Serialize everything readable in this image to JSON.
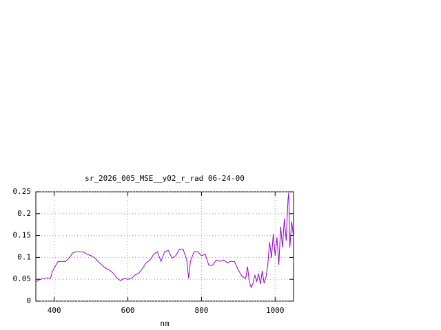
{
  "chart_data": {
    "type": "line",
    "title": "sr_2026_005_MSE__y02_r_rad 06-24-00",
    "x_label": "nm",
    "x": [
      350,
      360,
      370,
      380,
      390,
      395,
      405,
      410,
      420,
      430,
      440,
      450,
      460,
      470,
      480,
      490,
      500,
      510,
      520,
      530,
      540,
      550,
      560,
      570,
      580,
      590,
      600,
      610,
      620,
      630,
      640,
      650,
      660,
      670,
      680,
      690,
      700,
      710,
      720,
      730,
      740,
      750,
      760,
      765,
      770,
      780,
      790,
      800,
      810,
      820,
      830,
      840,
      850,
      860,
      870,
      880,
      890,
      900,
      910,
      920,
      925,
      930,
      935,
      940,
      945,
      950,
      955,
      960,
      965,
      970,
      975,
      980,
      985,
      990,
      995,
      1000,
      1005,
      1010,
      1015,
      1020,
      1025,
      1030,
      1035,
      1037,
      1040,
      1045,
      1050
    ],
    "series": [
      {
        "name": "sr_2026_005_MSE__y02_r_rad",
        "color": "#9400d3",
        "values": [
          0.044,
          0.049,
          0.052,
          0.053,
          0.052,
          0.068,
          0.083,
          0.09,
          0.091,
          0.09,
          0.098,
          0.11,
          0.113,
          0.113,
          0.112,
          0.107,
          0.104,
          0.099,
          0.09,
          0.082,
          0.075,
          0.071,
          0.064,
          0.053,
          0.047,
          0.052,
          0.05,
          0.052,
          0.06,
          0.064,
          0.075,
          0.088,
          0.094,
          0.107,
          0.113,
          0.091,
          0.113,
          0.116,
          0.098,
          0.104,
          0.119,
          0.119,
          0.094,
          0.052,
          0.091,
          0.113,
          0.113,
          0.104,
          0.107,
          0.082,
          0.082,
          0.094,
          0.091,
          0.094,
          0.088,
          0.091,
          0.09,
          0.071,
          0.057,
          0.052,
          0.079,
          0.044,
          0.031,
          0.041,
          0.06,
          0.044,
          0.063,
          0.039,
          0.069,
          0.041,
          0.055,
          0.083,
          0.135,
          0.099,
          0.154,
          0.104,
          0.146,
          0.083,
          0.17,
          0.123,
          0.189,
          0.138,
          0.233,
          0.248,
          0.123,
          0.182,
          0.146
        ]
      }
    ],
    "xlim": [
      350,
      1050
    ],
    "xticks": [
      400,
      600,
      800,
      1000
    ],
    "ylim": [
      0,
      0.25
    ],
    "yticks": [
      0,
      0.05,
      0.1,
      0.15,
      0.2,
      0.25
    ],
    "grid": true
  }
}
